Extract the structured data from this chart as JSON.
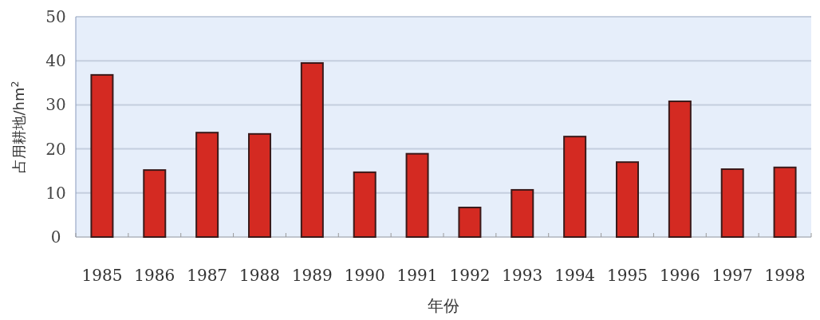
{
  "chart_data": {
    "type": "bar",
    "xlabel": "年份",
    "ylabel": "占用耕地/hm$^{2}$",
    "categories": [
      "1985",
      "1986",
      "1987",
      "1988",
      "1989",
      "1990",
      "1991",
      "1992",
      "1993",
      "1994",
      "1995",
      "1996",
      "1997",
      "1998"
    ],
    "values": [
      36.8,
      15.2,
      23.7,
      23.4,
      39.5,
      14.7,
      18.9,
      6.7,
      10.7,
      22.8,
      17.0,
      30.8,
      15.4,
      15.8
    ],
    "color": "#d42a22",
    "ylim": [
      0,
      50
    ],
    "yticks": [
      0,
      10,
      20,
      30,
      40,
      50
    ],
    "grid": "y"
  }
}
